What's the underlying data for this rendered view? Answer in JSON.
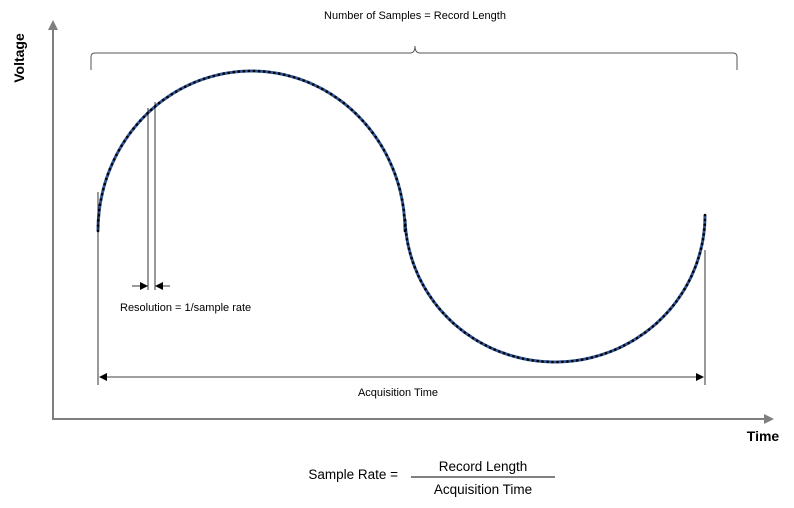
{
  "labels": {
    "top_brace": "Number of Samples = Record Length",
    "y_axis": "Voltage",
    "x_axis": "Time",
    "resolution": "Resolution = 1/sample rate",
    "acquisition": "Acquisition Time"
  },
  "formula": {
    "lhs": "Sample Rate =",
    "numerator": "Record Length",
    "denominator": "Acquisition Time"
  },
  "colors": {
    "axis": "#7f7f7f",
    "dimension_lines": "#000000",
    "waveform": "#2f5597",
    "sample_dots": "#000000"
  }
}
